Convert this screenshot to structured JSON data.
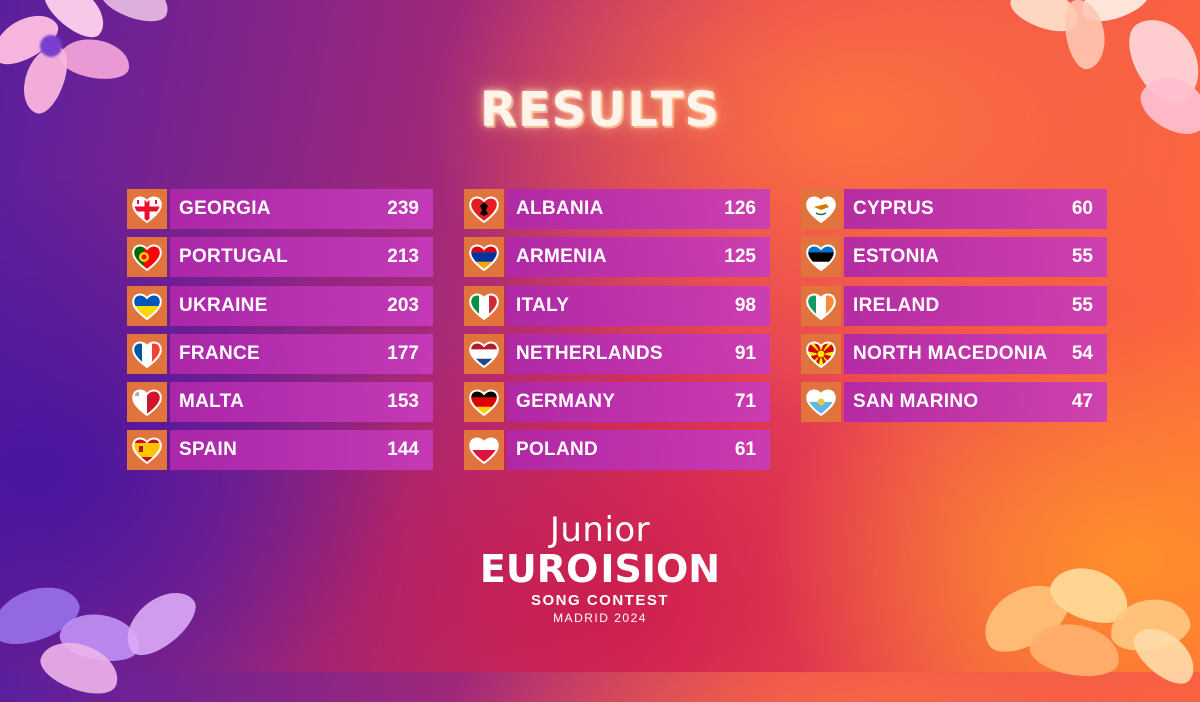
{
  "title": "RESULTS",
  "columns": [
    {
      "rows": [
        {
          "country": "GEORGIA",
          "points": "239",
          "flag": "georgia-flag-heart-icon"
        },
        {
          "country": "PORTUGAL",
          "points": "213",
          "flag": "portugal-flag-heart-icon"
        },
        {
          "country": "UKRAINE",
          "points": "203",
          "flag": "ukraine-flag-heart-icon"
        },
        {
          "country": "FRANCE",
          "points": "177",
          "flag": "france-flag-heart-icon"
        },
        {
          "country": "MALTA",
          "points": "153",
          "flag": "malta-flag-heart-icon"
        },
        {
          "country": "SPAIN",
          "points": "144",
          "flag": "spain-flag-heart-icon"
        }
      ]
    },
    {
      "rows": [
        {
          "country": "ALBANIA",
          "points": "126",
          "flag": "albania-flag-heart-icon"
        },
        {
          "country": "ARMENIA",
          "points": "125",
          "flag": "armenia-flag-heart-icon"
        },
        {
          "country": "ITALY",
          "points": "98",
          "flag": "italy-flag-heart-icon"
        },
        {
          "country": "NETHERLANDS",
          "points": "91",
          "flag": "netherlands-flag-heart-icon"
        },
        {
          "country": "GERMANY",
          "points": "71",
          "flag": "germany-flag-heart-icon"
        },
        {
          "country": "POLAND",
          "points": "61",
          "flag": "poland-flag-heart-icon"
        }
      ]
    },
    {
      "rows": [
        {
          "country": "CYPRUS",
          "points": "60",
          "flag": "cyprus-flag-heart-icon"
        },
        {
          "country": "ESTONIA",
          "points": "55",
          "flag": "estonia-flag-heart-icon"
        },
        {
          "country": "IRELAND",
          "points": "55",
          "flag": "ireland-flag-heart-icon"
        },
        {
          "country": "NORTH MACEDONIA",
          "points": "54",
          "flag": "north-macedonia-flag-heart-icon"
        },
        {
          "country": "SAN MARINO",
          "points": "47",
          "flag": "san-marino-flag-heart-icon"
        }
      ]
    }
  ],
  "logo": {
    "line1": "Junior",
    "line2a": "EURO",
    "line2b": "ISION",
    "line3": "SONG CONTEST",
    "line4": "MADRID 2024"
  },
  "colors": {
    "flag_box": "#e0743c",
    "bar": "#b028aa",
    "text": "#ffffff"
  }
}
